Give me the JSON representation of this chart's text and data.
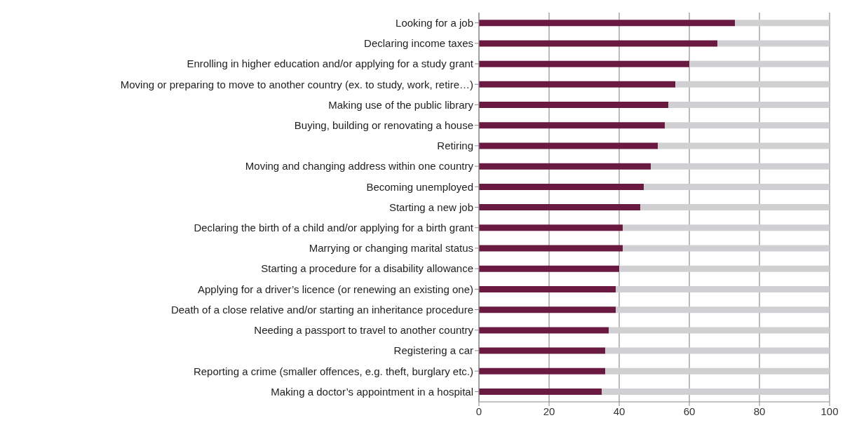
{
  "chart_data": {
    "type": "bar",
    "orientation": "horizontal",
    "stacked": true,
    "categories": [
      "Looking for a job",
      "Declaring income taxes",
      "Enrolling in higher education and/or applying for a study grant",
      "Moving or preparing to move to another country (ex. to study, work, retire…)",
      "Making use of the public library",
      "Buying, building or renovating a house",
      "Retiring",
      "Moving and changing address within one country",
      "Becoming unemployed",
      "Starting a new job",
      "Declaring the birth of a child and/or applying for a birth grant",
      "Marrying or changing marital status",
      "Starting a procedure for a disability allowance",
      "Applying for a driver’s licence (or renewing an existing one)",
      "Death of a close relative and/or starting an inheritance procedure",
      "Needing a passport to travel to another country",
      "Registering a car",
      "Reporting a crime (smaller offences, e.g. theft, burglary etc.)",
      "Making a doctor’s appointment in a hospital"
    ],
    "series": [
      {
        "color": "#6a1a40",
        "values": [
          73,
          68,
          60,
          56,
          54,
          53,
          51,
          49,
          47,
          46,
          41,
          41,
          40,
          39,
          39,
          37,
          36,
          36,
          35
        ]
      },
      {
        "color": "#d0d0d2",
        "values": [
          27,
          32,
          40,
          44,
          46,
          47,
          49,
          51,
          53,
          54,
          59,
          59,
          60,
          61,
          61,
          63,
          64,
          64,
          65
        ]
      }
    ],
    "xlim": [
      0,
      100
    ],
    "xticks": [
      0,
      20,
      40,
      60,
      80,
      100
    ],
    "grid": "x",
    "legend": false
  }
}
